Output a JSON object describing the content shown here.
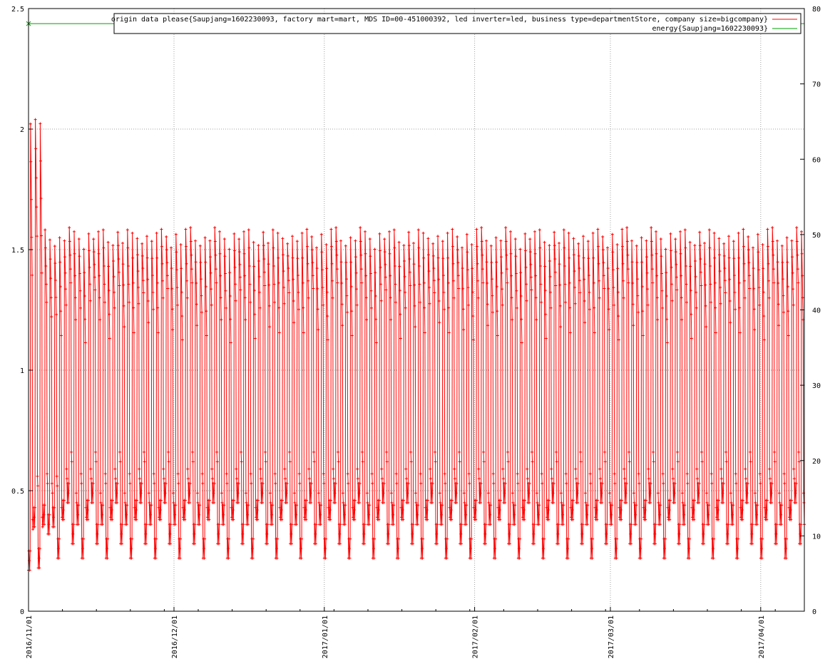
{
  "chart_data": {
    "type": "line",
    "title": "",
    "y_left": {
      "range": [
        0,
        2.5
      ],
      "ticks": [
        "0",
        "0.5",
        "1",
        "1.5",
        "2",
        "2.5"
      ],
      "tick_values": [
        0,
        0.5,
        1,
        1.5,
        2,
        2.5
      ]
    },
    "y_right": {
      "range": [
        0,
        80
      ],
      "ticks": [
        "0",
        "10",
        "20",
        "30",
        "40",
        "50",
        "60",
        "70",
        "80"
      ],
      "tick_values": [
        0,
        10,
        20,
        30,
        40,
        50,
        60,
        70,
        80
      ]
    },
    "x_range": [
      "2016-11-01",
      "2017-04-10"
    ],
    "x_ticks": [
      {
        "label": "2016/11/01",
        "date": "2016-11-01"
      },
      {
        "label": "2016/12/01",
        "date": "2016-12-01"
      },
      {
        "label": "2017/01/01",
        "date": "2017-01-01"
      },
      {
        "label": "2017/02/01",
        "date": "2017-02-01"
      },
      {
        "label": "2017/03/01",
        "date": "2017-03-01"
      },
      {
        "label": "2017/04/01",
        "date": "2017-04-01"
      }
    ],
    "grid": true,
    "legend_position": "top-right",
    "series": [
      {
        "name": "origin data please{Saupjang=1602230093, factory mart=mart, MDS ID=00-451000392, led inverter=led, business type=departmentStore, company size=bigcompany}",
        "axis": "left",
        "color": "#ff0000",
        "marker": "plus",
        "day_peak_values": [
          2.1,
          2.1,
          2.1,
          1.62,
          1.58,
          1.55,
          1.6,
          1.57,
          1.62,
          1.62,
          1.58,
          1.55,
          1.6,
          1.57,
          1.62,
          1.62,
          1.58,
          1.55,
          1.6,
          1.57,
          1.62,
          1.62,
          1.58,
          1.55,
          1.6,
          1.57,
          1.62,
          1.62,
          1.58,
          1.55,
          1.6,
          1.57,
          1.62,
          1.62,
          1.58,
          1.55,
          1.6,
          1.57,
          1.62,
          1.62,
          1.58,
          1.55,
          1.6,
          1.57,
          1.62,
          1.62,
          1.58,
          1.55,
          1.6,
          1.57,
          1.62,
          1.62,
          1.58,
          1.55,
          1.6,
          1.57,
          1.62,
          1.62,
          1.58,
          1.55,
          1.6,
          1.57,
          1.62,
          1.62,
          1.58,
          1.55,
          1.6,
          1.57,
          1.62,
          1.62,
          1.58,
          1.55,
          1.6,
          1.57,
          1.62,
          1.62,
          1.58,
          1.55,
          1.6,
          1.57,
          1.62,
          1.62,
          1.58,
          1.55,
          1.6,
          1.57,
          1.62,
          1.62,
          1.58,
          1.55,
          1.6,
          1.57,
          1.62,
          1.62,
          1.58,
          1.55,
          1.6,
          1.57,
          1.62,
          1.62,
          1.58,
          1.55,
          1.6,
          1.57,
          1.62,
          1.62,
          1.58,
          1.55,
          1.6,
          1.57,
          1.62,
          1.62,
          1.58,
          1.55,
          1.6,
          1.57,
          1.62,
          1.62,
          1.58,
          1.55,
          1.6,
          1.57,
          1.62,
          1.62,
          1.58,
          1.55,
          1.6,
          1.57,
          1.62,
          1.62,
          1.58,
          1.55,
          1.6,
          1.57,
          1.62,
          1.62,
          1.58,
          1.55,
          1.6,
          1.57,
          1.62,
          1.62,
          1.58,
          1.55,
          1.6,
          1.57,
          1.62,
          1.62,
          1.58,
          1.55,
          1.6,
          1.57,
          1.62,
          1.62,
          1.58,
          1.55,
          1.6,
          1.57,
          1.62,
          1.62,
          1.58,
          1.55,
          1.6,
          1.57,
          1.62,
          2.1
        ],
        "night_low_values": [
          0.17,
          0.35,
          0.18,
          0.36,
          0.32,
          0.35,
          0.22,
          0.38,
          0.45,
          0.28,
          0.36,
          0.22,
          0.38,
          0.45,
          0.28,
          0.36,
          0.22,
          0.38,
          0.45,
          0.28,
          0.36,
          0.22,
          0.38,
          0.45,
          0.28,
          0.36,
          0.22,
          0.38,
          0.45,
          0.28,
          0.36,
          0.22,
          0.38,
          0.45,
          0.28,
          0.36,
          0.22,
          0.38,
          0.45,
          0.28,
          0.36,
          0.22,
          0.38,
          0.45,
          0.28,
          0.36,
          0.22,
          0.38,
          0.45,
          0.28,
          0.36,
          0.22,
          0.38,
          0.45,
          0.28,
          0.36,
          0.22,
          0.38,
          0.45,
          0.28,
          0.36,
          0.22,
          0.38,
          0.45,
          0.28,
          0.36,
          0.22,
          0.38,
          0.45,
          0.28,
          0.36,
          0.22,
          0.38,
          0.45,
          0.28,
          0.36,
          0.22,
          0.38,
          0.45,
          0.28,
          0.36,
          0.22,
          0.38,
          0.45,
          0.28,
          0.36,
          0.22,
          0.38,
          0.45,
          0.28,
          0.36,
          0.22,
          0.38,
          0.45,
          0.28,
          0.36,
          0.22,
          0.38,
          0.45,
          0.28,
          0.36,
          0.22,
          0.38,
          0.45,
          0.28,
          0.36,
          0.22,
          0.38,
          0.45,
          0.28,
          0.36,
          0.22,
          0.38,
          0.45,
          0.28,
          0.36,
          0.22,
          0.38,
          0.45,
          0.28,
          0.36,
          0.22,
          0.38,
          0.45,
          0.28,
          0.36,
          0.22,
          0.38,
          0.45,
          0.28,
          0.36,
          0.22,
          0.38,
          0.45,
          0.28,
          0.36,
          0.22,
          0.38,
          0.45,
          0.28,
          0.36,
          0.22,
          0.38,
          0.45,
          0.28,
          0.36,
          0.22,
          0.38,
          0.45,
          0.28,
          0.36,
          0.22,
          0.38,
          0.45,
          0.28,
          0.36,
          0.22,
          0.38,
          0.45,
          0.28,
          0.36,
          0.1
        ]
      },
      {
        "name": "energy{Saupjang=1602230093}",
        "axis": "right",
        "color": "#00a000",
        "marker": "cross",
        "x": [
          "2016-11-01",
          "2017-04-10"
        ],
        "values": [
          78,
          78
        ]
      }
    ]
  }
}
